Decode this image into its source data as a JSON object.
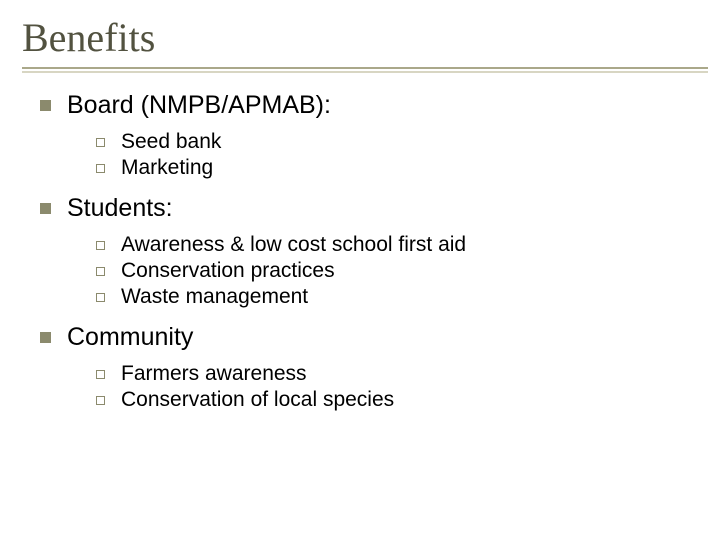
{
  "title": "Benefits",
  "colors": {
    "title_text": "#525240",
    "bullet_fill": "#8b8a6d",
    "underline_main": "#aaa88a",
    "underline_shadow": "#d8d6c3",
    "body_text": "#000000",
    "background": "#ffffff"
  },
  "typography": {
    "title_font": "Times New Roman",
    "title_size_pt": 40,
    "body_font": "Arial",
    "l1_size_pt": 25,
    "l2_size_pt": 21
  },
  "sections": [
    {
      "heading": "Board (NMPB/APMAB):",
      "items": [
        "Seed bank",
        "Marketing"
      ]
    },
    {
      "heading": "Students:",
      "items": [
        "Awareness & low cost school first aid",
        "Conservation practices",
        "Waste management"
      ]
    },
    {
      "heading": "Community",
      "items": [
        "Farmers awareness",
        "Conservation of local species"
      ]
    }
  ]
}
